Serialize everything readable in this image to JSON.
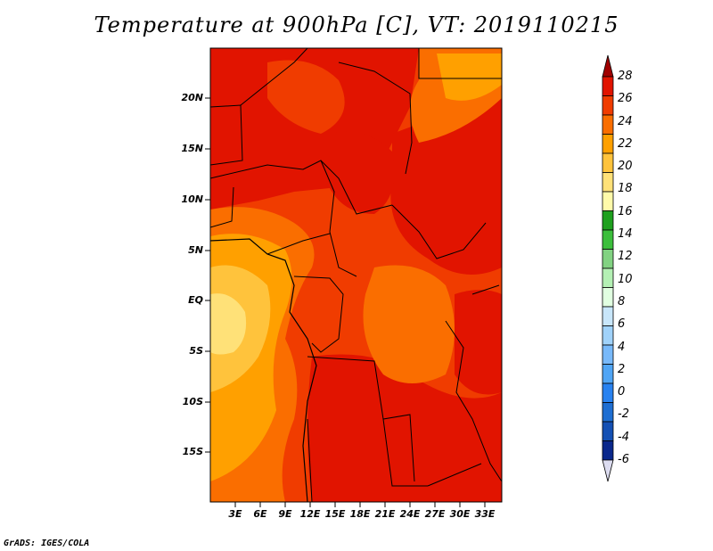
{
  "title": "Temperature at 900hPa [C], VT: 2019110215",
  "credit": "GrADS: IGES/COLA",
  "map": {
    "lat_labels": [
      "20N",
      "15N",
      "10N",
      "5N",
      "EQ",
      "5S",
      "10S",
      "15S"
    ],
    "lon_labels": [
      "3E",
      "6E",
      "9E",
      "12E",
      "15E",
      "18E",
      "21E",
      "24E",
      "27E",
      "30E",
      "33E"
    ]
  },
  "colorbar": {
    "labels": [
      "28",
      "26",
      "24",
      "22",
      "20",
      "18",
      "16",
      "14",
      "12",
      "10",
      "8",
      "6",
      "4",
      "2",
      "0",
      "-2",
      "-4",
      "-6"
    ],
    "colors": [
      "#a00000",
      "#e11400",
      "#f03c00",
      "#fa6e00",
      "#ffa000",
      "#ffc33c",
      "#ffe178",
      "#fffaaa",
      "#1ea01e",
      "#3cbe3c",
      "#82d282",
      "#b4f0b4",
      "#e1ffe1",
      "#c8e6fa",
      "#a0d2fa",
      "#78b9fa",
      "#50a5f5",
      "#2882f0",
      "#1e6ed2",
      "#1450b4",
      "#0a288c",
      "#dcdcf0"
    ]
  }
}
